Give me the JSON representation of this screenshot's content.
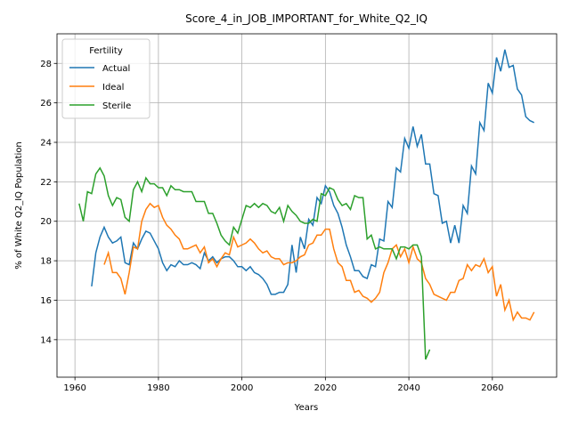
{
  "chart_data": {
    "type": "line",
    "title": "Score_4_in_JOB_IMPORTANT_for_White_Q2_IQ",
    "x_label": "Years",
    "y_label": "% of White Q2_IQ Population",
    "legend_title": "Fertility",
    "legend_position": "upper left",
    "grid": true,
    "xlim": [
      1955.7,
      2075.4
    ],
    "ylim": [
      12.1,
      29.5
    ],
    "xticks": [
      1960,
      1980,
      2000,
      2020,
      2040,
      2060
    ],
    "yticks": [
      14,
      16,
      18,
      20,
      22,
      24,
      26,
      28
    ],
    "x": [
      1961,
      1962,
      1963,
      1964,
      1965,
      1966,
      1967,
      1968,
      1969,
      1970,
      1971,
      1972,
      1973,
      1974,
      1975,
      1976,
      1977,
      1978,
      1979,
      1980,
      1981,
      1982,
      1983,
      1984,
      1985,
      1986,
      1987,
      1988,
      1989,
      1990,
      1991,
      1992,
      1993,
      1994,
      1995,
      1996,
      1997,
      1998,
      1999,
      2000,
      2001,
      2002,
      2003,
      2004,
      2005,
      2006,
      2007,
      2008,
      2009,
      2010,
      2011,
      2012,
      2013,
      2014,
      2015,
      2016,
      2017,
      2018,
      2019,
      2020,
      2021,
      2022,
      2023,
      2024,
      2025,
      2026,
      2027,
      2028,
      2029,
      2030,
      2031,
      2032,
      2033,
      2034,
      2035,
      2036,
      2037,
      2038,
      2039,
      2040,
      2041,
      2042,
      2043,
      2044,
      2045,
      2046,
      2047,
      2048,
      2049,
      2050,
      2051,
      2052,
      2053,
      2054,
      2055,
      2056,
      2057,
      2058,
      2059,
      2060,
      2061,
      2062,
      2063,
      2064,
      2065,
      2066,
      2067,
      2068,
      2069,
      2070
    ],
    "series": [
      {
        "name": "Actual",
        "color": "#1f77b4",
        "values": [
          null,
          null,
          null,
          16.7,
          18.4,
          19.2,
          19.7,
          19.2,
          18.9,
          19.0,
          19.2,
          17.9,
          17.8,
          18.9,
          18.6,
          19.1,
          19.5,
          19.4,
          19.0,
          18.6,
          17.9,
          17.5,
          17.8,
          17.7,
          18.0,
          17.8,
          17.8,
          17.9,
          17.8,
          17.6,
          18.4,
          18.0,
          18.2,
          17.9,
          18.1,
          18.2,
          18.2,
          18.0,
          17.7,
          17.7,
          17.5,
          17.7,
          17.4,
          17.3,
          17.1,
          16.8,
          16.3,
          16.3,
          16.4,
          16.4,
          16.8,
          18.8,
          17.4,
          19.2,
          18.6,
          20.1,
          19.8,
          21.2,
          20.9,
          21.8,
          21.5,
          20.8,
          20.4,
          19.7,
          18.8,
          18.2,
          17.5,
          17.5,
          17.2,
          17.1,
          17.8,
          17.7,
          19.1,
          19.0,
          21.0,
          20.7,
          22.7,
          22.5,
          24.2,
          23.7,
          24.8,
          23.8,
          24.4,
          22.9,
          22.9,
          21.4,
          21.3,
          19.9,
          20.0,
          18.9,
          19.8,
          18.9,
          20.8,
          20.4,
          22.8,
          22.4,
          25.0,
          24.6,
          27.0,
          26.5,
          28.3,
          27.6,
          28.7,
          27.8,
          27.9,
          26.7,
          26.4,
          25.3,
          25.1,
          25.0
        ]
      },
      {
        "name": "Ideal",
        "color": "#ff7f0e",
        "values": [
          null,
          null,
          null,
          null,
          null,
          null,
          17.8,
          18.4,
          17.4,
          17.4,
          17.1,
          16.3,
          17.4,
          18.7,
          18.6,
          20.0,
          20.6,
          20.9,
          20.7,
          20.8,
          20.2,
          19.8,
          19.6,
          19.3,
          19.1,
          18.6,
          18.6,
          18.7,
          18.8,
          18.4,
          18.7,
          17.9,
          18.1,
          17.7,
          18.1,
          18.4,
          18.3,
          19.2,
          18.7,
          18.8,
          18.9,
          19.1,
          18.9,
          18.6,
          18.4,
          18.5,
          18.2,
          18.1,
          18.1,
          17.8,
          17.9,
          17.9,
          18.0,
          18.2,
          18.3,
          18.8,
          18.9,
          19.3,
          19.3,
          19.6,
          19.6,
          18.6,
          17.9,
          17.7,
          17.0,
          17.0,
          16.4,
          16.5,
          16.2,
          16.1,
          15.9,
          16.1,
          16.4,
          17.4,
          17.9,
          18.6,
          18.8,
          18.2,
          18.6,
          17.9,
          18.7,
          18.1,
          17.9,
          17.1,
          16.8,
          16.3,
          16.2,
          16.1,
          16.0,
          16.4,
          16.4,
          17.0,
          17.1,
          17.8,
          17.5,
          17.8,
          17.7,
          18.1,
          17.4,
          17.7,
          16.2,
          16.8,
          15.5,
          16.0,
          15.0,
          15.4,
          15.1,
          15.1,
          15.0,
          15.4
        ]
      },
      {
        "name": "Sterile",
        "color": "#2ca02c",
        "values": [
          20.9,
          20.0,
          21.5,
          21.4,
          22.4,
          22.7,
          22.3,
          21.3,
          20.8,
          21.2,
          21.1,
          20.2,
          20.0,
          21.6,
          22.0,
          21.5,
          22.2,
          21.9,
          21.9,
          21.7,
          21.7,
          21.3,
          21.8,
          21.6,
          21.6,
          21.5,
          21.5,
          21.5,
          21.0,
          21.0,
          21.0,
          20.4,
          20.4,
          19.9,
          19.3,
          19.0,
          18.8,
          19.7,
          19.4,
          20.1,
          20.8,
          20.7,
          20.9,
          20.7,
          20.9,
          20.8,
          20.5,
          20.4,
          20.7,
          20.0,
          20.8,
          20.5,
          20.3,
          20.0,
          19.9,
          19.9,
          20.1,
          20.0,
          21.4,
          21.3,
          21.7,
          21.6,
          21.1,
          20.8,
          20.9,
          20.6,
          21.3,
          21.2,
          21.2,
          19.1,
          19.3,
          18.6,
          18.7,
          18.6,
          18.6,
          18.6,
          18.1,
          18.7,
          18.7,
          18.6,
          18.8,
          18.8,
          18.2,
          13.0,
          13.5,
          null,
          null,
          null,
          null,
          null,
          null,
          null,
          null,
          null,
          null,
          null,
          null,
          null,
          null,
          null,
          null,
          null,
          null,
          null,
          null,
          null,
          null,
          null,
          null,
          null
        ]
      }
    ]
  }
}
